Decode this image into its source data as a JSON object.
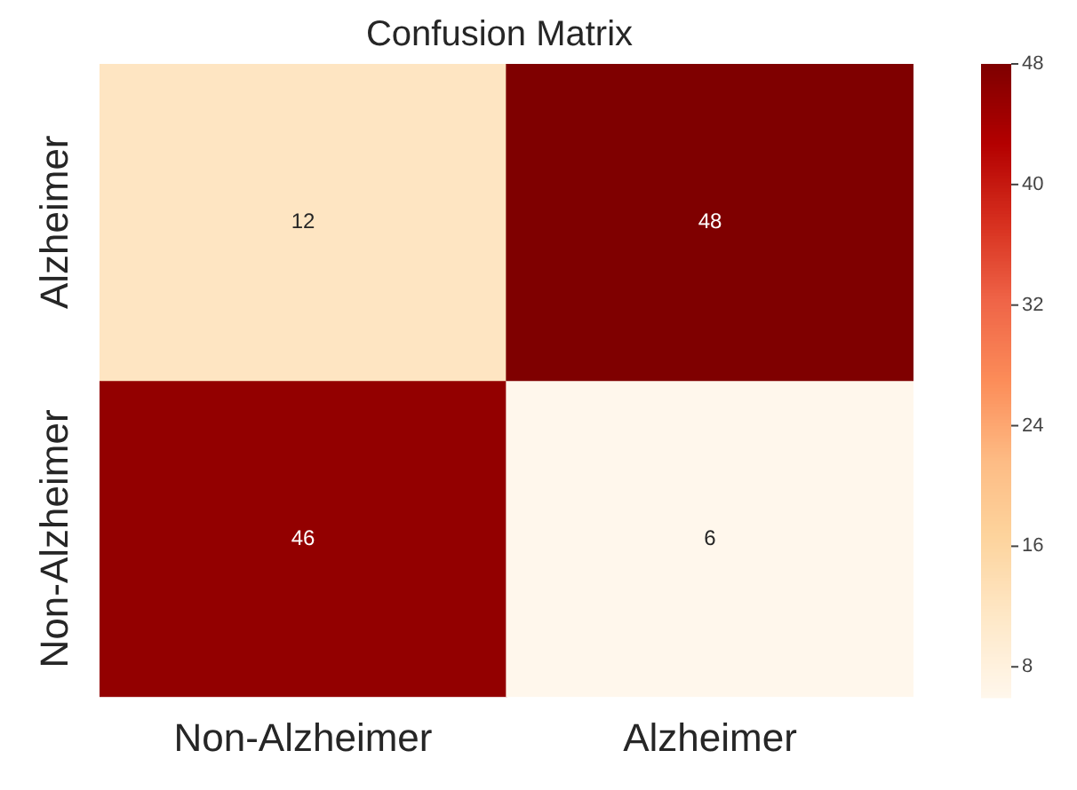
{
  "chart_data": {
    "type": "heatmap",
    "title": "Confusion Matrix",
    "categories": [
      "Non-Alzheimer",
      "Alzheimer"
    ],
    "y_categories": [
      "Alzheimer",
      "Non-Alzheimer"
    ],
    "cells": [
      [
        12,
        48
      ],
      [
        46,
        6
      ]
    ],
    "clim": [
      6,
      48
    ],
    "cticks": [
      8,
      16,
      24,
      32,
      40,
      48
    ],
    "data_labels": true
  }
}
